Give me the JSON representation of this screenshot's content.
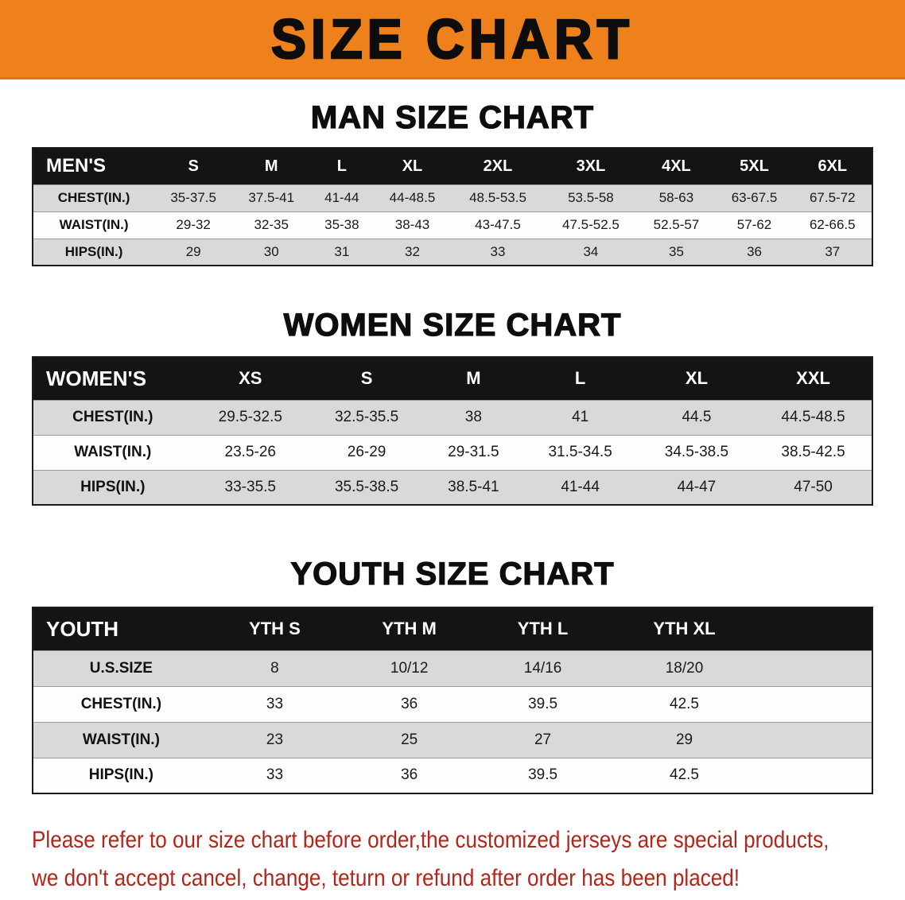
{
  "banner": {
    "title": "SIZE CHART",
    "background_color": "#ef811d",
    "text_color": "#0d0d0d"
  },
  "tables": [
    {
      "heading": "MAN SIZE CHART",
      "header": [
        "MEN'S",
        "S",
        "M",
        "L",
        "XL",
        "2XL",
        "3XL",
        "4XL",
        "5XL",
        "6XL"
      ],
      "rows": [
        [
          "CHEST(IN.)",
          "35-37.5",
          "37.5-41",
          "41-44",
          "44-48.5",
          "48.5-53.5",
          "53.5-58",
          "58-63",
          "63-67.5",
          "67.5-72"
        ],
        [
          "WAIST(IN.)",
          "29-32",
          "32-35",
          "35-38",
          "38-43",
          "43-47.5",
          "47.5-52.5",
          "52.5-57",
          "57-62",
          "62-66.5"
        ],
        [
          "HIPS(IN.)",
          "29",
          "30",
          "31",
          "32",
          "33",
          "34",
          "35",
          "36",
          "37"
        ]
      ]
    },
    {
      "heading": "WOMEN SIZE CHART",
      "header": [
        "WOMEN'S",
        "XS",
        "S",
        "M",
        "L",
        "XL",
        "XXL"
      ],
      "rows": [
        [
          "CHEST(IN.)",
          "29.5-32.5",
          "32.5-35.5",
          "38",
          "41",
          "44.5",
          "44.5-48.5"
        ],
        [
          "WAIST(IN.)",
          "23.5-26",
          "26-29",
          "29-31.5",
          "31.5-34.5",
          "34.5-38.5",
          "38.5-42.5"
        ],
        [
          "HIPS(IN.)",
          "33-35.5",
          "35.5-38.5",
          "38.5-41",
          "41-44",
          "44-47",
          "47-50"
        ]
      ]
    },
    {
      "heading": "YOUTH SIZE CHART",
      "header": [
        "YOUTH",
        "YTH S",
        "YTH M",
        "YTH L",
        "YTH XL"
      ],
      "rows": [
        [
          "U.S.SIZE",
          "8",
          "10/12",
          "14/16",
          "18/20"
        ],
        [
          "CHEST(IN.)",
          "33",
          "36",
          "39.5",
          "42.5"
        ],
        [
          "WAIST(IN.)",
          "23",
          "25",
          "27",
          "29"
        ],
        [
          "HIPS(IN.)",
          "33",
          "36",
          "39.5",
          "42.5"
        ]
      ]
    }
  ],
  "footer": {
    "line1": "Please refer to our size chart before order,the customized jerseys are special products,",
    "line2": "we don't accept cancel, change, teturn or refund after order has been placed!",
    "text_color": "#b2251c"
  }
}
